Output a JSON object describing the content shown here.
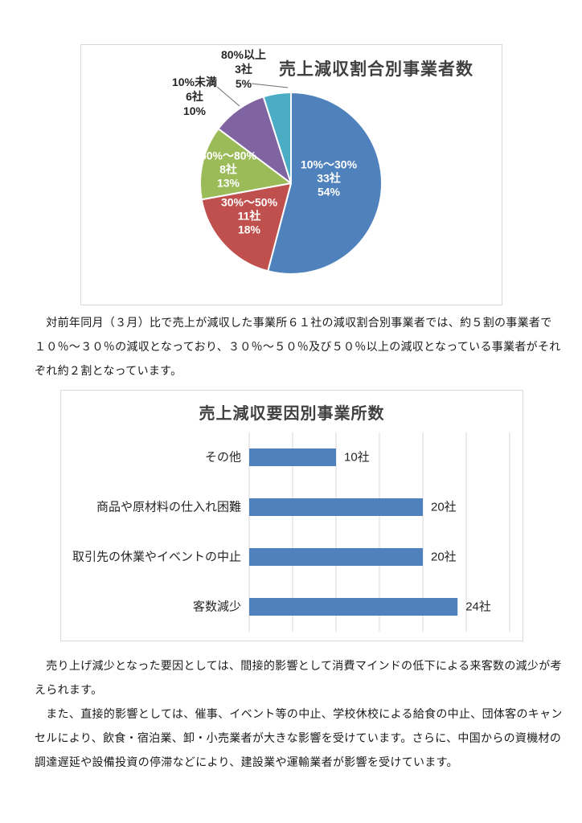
{
  "page": {
    "paragraph_ratio": "　対前年同月（３月）比で売上が減収した事業所６１社の減収割合別事業者では、約５割の事業者で\n１０％～３０％の減収となっており、３０％～５０％及び５０％以上の減収となっている事業者がそれ\nぞれ約２割となっています。",
    "paragraph_indirect": "　売り上げ減少となった要因としては、間接的影響として消費マインドの低下による来客数の減少が考\nえられます。",
    "paragraph_direct": "　また、直接的影響としては、催事、イベント等の中止、学校休校による給食の中止、団体客のキャン\nセルにより、飲食・宿泊業、卸・小売業者が大きな影響を受けています。さらに、中国からの資機材の\n調達遅延や設備投資の停滞などにより、建設業や運輸業者が影響を受けています。"
  },
  "chart_data": [
    {
      "type": "pie",
      "title": "売上減収割合別事業者数",
      "total": 61,
      "unit": "社",
      "slice_border_color": "#ffffff",
      "slices": [
        {
          "label": "10%～30%",
          "count": 33,
          "count_label": "33社",
          "pct_label": "54%",
          "color": "#4F81BD",
          "label_pos": "inside"
        },
        {
          "label": "30%～50%",
          "count": 11,
          "count_label": "11社",
          "pct_label": "18%",
          "color": "#C0504D",
          "label_pos": "inside"
        },
        {
          "label": "50%～80%",
          "count": 8,
          "count_label": "8社",
          "pct_label": "13%",
          "color": "#9BBB59",
          "label_pos": "inside"
        },
        {
          "label": "10%未満",
          "count": 6,
          "count_label": "6社",
          "pct_label": "10%",
          "color": "#8064A2",
          "label_pos": "outside"
        },
        {
          "label": "80%以上",
          "count": 3,
          "count_label": "3社",
          "pct_label": "5%",
          "color": "#4BACC6",
          "label_pos": "outside"
        }
      ]
    },
    {
      "type": "bar",
      "orientation": "horizontal",
      "title": "売上減収要因別事業所数",
      "categories": [
        "その他",
        "商品や原材料の仕入れ困難",
        "取引先の休業やイベントの中止",
        "客数減少"
      ],
      "values": [
        10,
        20,
        20,
        24
      ],
      "value_labels": [
        "10社",
        "20社",
        "20社",
        "24社"
      ],
      "bar_color": "#4F81BD",
      "grid": true,
      "grid_color": "#d9d9d9",
      "xlim": [
        0,
        30
      ],
      "grid_step": 5
    }
  ]
}
